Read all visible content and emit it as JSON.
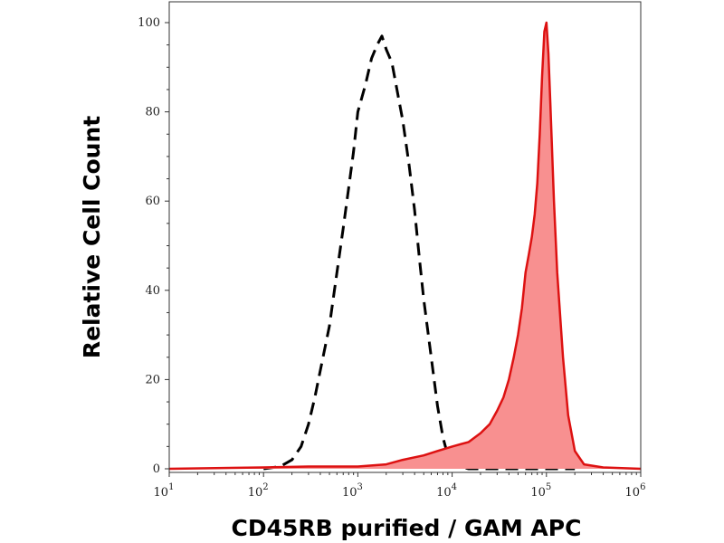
{
  "chart_data": {
    "type": "area",
    "xlabel": "CD45RB purified / GAM APC",
    "ylabel": "Relative Cell Count",
    "xscale": "log",
    "xlim": [
      10,
      1000000
    ],
    "ylim": [
      0,
      100
    ],
    "x_ticks": [
      {
        "base": "10",
        "exp": "1"
      },
      {
        "base": "10",
        "exp": "2"
      },
      {
        "base": "10",
        "exp": "3"
      },
      {
        "base": "10",
        "exp": "4"
      },
      {
        "base": "10",
        "exp": "5"
      },
      {
        "base": "10",
        "exp": "6"
      }
    ],
    "y_ticks": [
      "0",
      "20",
      "40",
      "60",
      "80",
      "100"
    ],
    "grid": false,
    "colors": {
      "stained": "#dd1111",
      "stained_fill": "#f89090",
      "control": "#000000"
    },
    "series": [
      {
        "style": "dashed-outline",
        "color": "#000000",
        "x": [
          100,
          150,
          200,
          250,
          300,
          350,
          400,
          500,
          600,
          700,
          800,
          900,
          1000,
          1200,
          1400,
          1600,
          1800,
          2000,
          2300,
          2600,
          3000,
          3500,
          4000,
          4500,
          5000,
          6000,
          7000,
          8000,
          9000,
          10000,
          12000,
          15000,
          20000,
          30000,
          50000,
          80000,
          100000,
          150000,
          200000
        ],
        "y": [
          0,
          0.5,
          2,
          5,
          10,
          16,
          22,
          32,
          44,
          54,
          63,
          71,
          80,
          86,
          92,
          95,
          97,
          94,
          91,
          85,
          78,
          68,
          58,
          47,
          38,
          25,
          14,
          7,
          3,
          1,
          0.5,
          0,
          0,
          0,
          0,
          0,
          0,
          0,
          0
        ]
      },
      {
        "style": "filled",
        "color": "#dd1111",
        "x": [
          10,
          100,
          300,
          1000,
          2000,
          3000,
          5000,
          7000,
          10000,
          15000,
          20000,
          25000,
          30000,
          35000,
          40000,
          45000,
          50000,
          55000,
          60000,
          65000,
          70000,
          75000,
          80000,
          85000,
          90000,
          95000,
          100000,
          105000,
          110000,
          120000,
          130000,
          150000,
          170000,
          200000,
          250000,
          400000,
          1000000
        ],
        "y": [
          0,
          0.3,
          0.5,
          0.5,
          1,
          2,
          3,
          4,
          5,
          6,
          8,
          10,
          13,
          16,
          20,
          25,
          30,
          36,
          44,
          48,
          52,
          57,
          64,
          75,
          88,
          98,
          100,
          93,
          82,
          60,
          44,
          25,
          12,
          4,
          1,
          0.3,
          0
        ]
      }
    ]
  }
}
